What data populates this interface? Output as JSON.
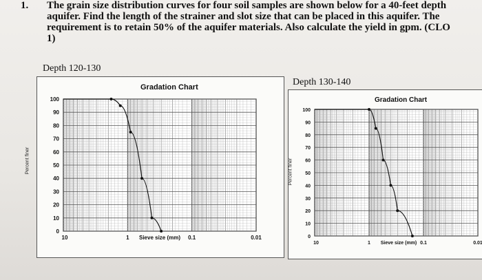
{
  "question": {
    "number": "1.",
    "lines": [
      "The grain size distribution curves for four soil samples are shown below for a 40-feet depth",
      "aquifer. Find the length of the strainer and slot size that can be placed in this aquifer. The",
      "requirement is to retain 50% of the aquifer materials. Also calculate the yield in gpm. (CLO",
      "1)"
    ]
  },
  "charts": [
    {
      "depth_label": "Depth 120-130",
      "title": "Gradation Chart",
      "ylabel": "Percent finer",
      "xlabel": "Sieve size (mm)"
    },
    {
      "depth_label": "Depth 130-140",
      "title": "Gradation Chart",
      "ylabel": "Percent finer",
      "xlabel": "Sieve size (mm)"
    }
  ],
  "chart_data": [
    {
      "type": "line",
      "title": "Gradation Chart",
      "xlabel": "Sieve size (mm)",
      "ylabel": "Percent finer",
      "x_scale": "log-reversed",
      "xlim": [
        10,
        0.01
      ],
      "ylim": [
        0,
        100
      ],
      "xticks": [
        "10",
        "1",
        "0.1",
        "0.01"
      ],
      "yticks": [
        "0",
        "10",
        "20",
        "30",
        "40",
        "50",
        "60",
        "70",
        "80",
        "90",
        "100"
      ],
      "grid": true,
      "series": [
        {
          "x": [
            10,
            1.8,
            1.3,
            0.9,
            0.6,
            0.42,
            0.3
          ],
          "y": [
            100,
            100,
            95,
            75,
            40,
            10,
            0
          ]
        }
      ]
    },
    {
      "type": "line",
      "title": "Gradation Chart",
      "xlabel": "Sieve size (mm)",
      "ylabel": "Percent finer",
      "x_scale": "log-reversed",
      "xlim": [
        10,
        0.01
      ],
      "ylim": [
        0,
        100
      ],
      "xticks": [
        "10",
        "1",
        "0.1",
        "0.01"
      ],
      "yticks": [
        "0",
        "10",
        "20",
        "30",
        "40",
        "50",
        "60",
        "70",
        "80",
        "90",
        "100"
      ],
      "grid": true,
      "series": [
        {
          "x": [
            10,
            1.0,
            0.75,
            0.55,
            0.4,
            0.3,
            0.16
          ],
          "y": [
            100,
            100,
            85,
            60,
            40,
            20,
            0
          ]
        }
      ]
    }
  ]
}
